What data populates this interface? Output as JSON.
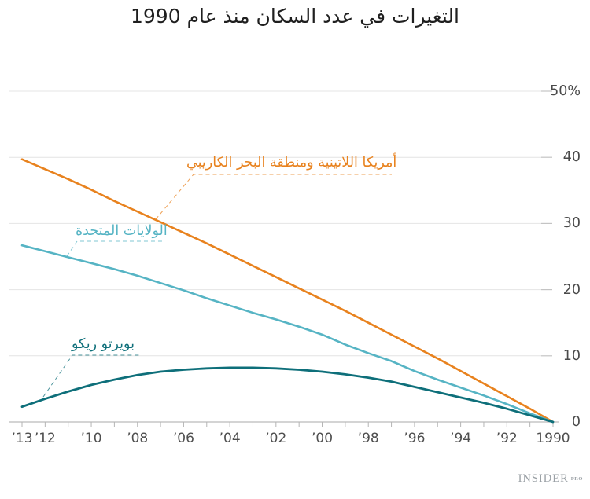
{
  "title": "التغيرات في عدد السكان منذ عام 1990",
  "logo": {
    "name": "INSIDER",
    "suffix": "PRO"
  },
  "colors": {
    "latin_america": "#e8821e",
    "united_states": "#56b4c4",
    "puerto_rico": "#0e6f7a",
    "gridline": "#e4e4e4",
    "grid_tick": "#c4c4c4",
    "axis_line": "#a8a8a8",
    "axis_tick": "#b5b5b5",
    "title_text": "#1f1f1f",
    "tick_text": "#4f4f4f",
    "logo_text": "#9aa0a5"
  },
  "chart_data": {
    "type": "line",
    "title": "التغيرات في عدد السكان منذ عام 1990",
    "title_translation": "Changes in population since 1990",
    "ylabel": "",
    "xlabel": "",
    "unit": "%",
    "ylim": [
      0,
      50
    ],
    "grid": "horizontal",
    "x_axis_direction": "reversed (1990 on the right, 2013 on the left, RTL chart)",
    "legend_position": "inline labels with dashed leader lines",
    "x": [
      1990,
      1991,
      1992,
      1993,
      1994,
      1995,
      1996,
      1997,
      1998,
      1999,
      2000,
      2001,
      2002,
      2003,
      2004,
      2005,
      2006,
      2007,
      2008,
      2009,
      2010,
      2011,
      2012,
      2013
    ],
    "series": [
      {
        "name": "أمريكا اللاتينية ومنطقة البحر الكاريبي",
        "name_translation": "Latin America and the Caribbean",
        "color": "#e8821e",
        "values": [
          0,
          2.0,
          3.9,
          5.8,
          7.7,
          9.6,
          11.4,
          13.2,
          15.0,
          16.8,
          18.5,
          20.2,
          21.9,
          23.6,
          25.3,
          27.0,
          28.6,
          30.2,
          31.8,
          33.4,
          35.1,
          36.7,
          38.2,
          39.7
        ]
      },
      {
        "name": "الولايات المتحدة",
        "name_translation": "United States",
        "color": "#56b4c4",
        "values": [
          0,
          1.3,
          2.7,
          4.0,
          5.2,
          6.4,
          7.7,
          9.2,
          10.4,
          11.7,
          13.2,
          14.4,
          15.5,
          16.5,
          17.6,
          18.7,
          19.9,
          21.0,
          22.1,
          23.1,
          24.0,
          24.9,
          25.8,
          26.7
        ]
      },
      {
        "name": "بويرتو ريكو",
        "name_translation": "Puerto Rico",
        "color": "#0e6f7a",
        "values": [
          0,
          1.0,
          2.0,
          2.9,
          3.7,
          4.5,
          5.3,
          6.1,
          6.7,
          7.2,
          7.6,
          7.9,
          8.1,
          8.2,
          8.2,
          8.1,
          7.9,
          7.6,
          7.1,
          6.4,
          5.6,
          4.6,
          3.5,
          2.3
        ]
      }
    ],
    "yticks": [
      {
        "value": 50,
        "label": "50%"
      },
      {
        "value": 40,
        "label": "40"
      },
      {
        "value": 30,
        "label": "30"
      },
      {
        "value": 20,
        "label": "20"
      },
      {
        "value": 10,
        "label": "10"
      },
      {
        "value": 0,
        "label": "0"
      }
    ],
    "xticks_minor_every_year": true,
    "xticks": [
      {
        "year": 2013,
        "label": "’13"
      },
      {
        "year": 2012,
        "label": "’12"
      },
      {
        "year": 2010,
        "label": "’10"
      },
      {
        "year": 2008,
        "label": "’08"
      },
      {
        "year": 2006,
        "label": "’06"
      },
      {
        "year": 2004,
        "label": "’04"
      },
      {
        "year": 2002,
        "label": "’02"
      },
      {
        "year": 2000,
        "label": "’00"
      },
      {
        "year": 1998,
        "label": "’98"
      },
      {
        "year": 1996,
        "label": "’96"
      },
      {
        "year": 1994,
        "label": "’94"
      },
      {
        "year": 1992,
        "label": "’92"
      },
      {
        "year": 1990,
        "label": "1990"
      }
    ]
  }
}
